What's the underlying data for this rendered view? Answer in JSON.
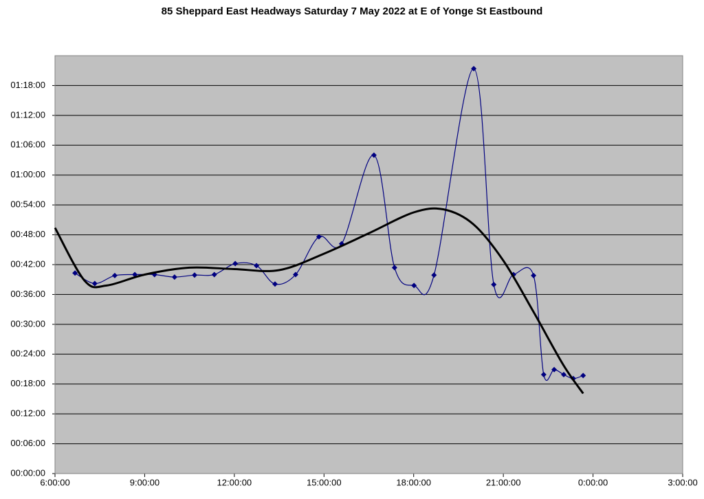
{
  "chart_data": {
    "type": "line",
    "title": "85 Sheppard East Headways Saturday 7 May 2022 at E of Yonge St Eastbound",
    "series": [
      {
        "color": "#000080",
        "marker": "diamond",
        "smooth": true,
        "x": [
          6.67,
          7.33,
          8.0,
          8.67,
          9.33,
          10.0,
          10.67,
          11.33,
          12.03,
          12.74,
          13.36,
          14.05,
          14.83,
          15.59,
          16.67,
          17.36,
          18.01,
          18.68,
          20.01,
          20.68,
          21.34,
          22.01,
          22.35,
          22.7,
          23.02,
          23.34,
          23.67
        ],
        "values": [
          40.3,
          38.2,
          39.8,
          40.0,
          40.0,
          39.5,
          39.9,
          40.0,
          42.2,
          41.8,
          38.1,
          40.0,
          47.6,
          46.2,
          64.0,
          41.4,
          37.8,
          39.9,
          81.4,
          38.0,
          40.0,
          39.8,
          19.9,
          20.9,
          19.9,
          19.1,
          19.7
        ]
      },
      {
        "color": "#000000",
        "marker": "none",
        "smooth": true,
        "x": [
          6.0,
          7.0,
          7.73,
          9.0,
          10.5,
          12.0,
          13.5,
          15.0,
          16.5,
          18.0,
          19.0,
          20.0,
          21.0,
          22.0,
          23.0,
          23.67
        ],
        "values": [
          49.4,
          38.7,
          37.8,
          40.0,
          41.4,
          41.1,
          40.9,
          44.2,
          48.3,
          52.5,
          53.1,
          50.1,
          42.8,
          32.6,
          21.9,
          16.1
        ]
      }
    ],
    "xlim": [
      6,
      27
    ],
    "xticks": [
      {
        "value": 6,
        "label": "6:00:00"
      },
      {
        "value": 9,
        "label": "9:00:00"
      },
      {
        "value": 12,
        "label": "12:00:00"
      },
      {
        "value": 15,
        "label": "15:00:00"
      },
      {
        "value": 18,
        "label": "18:00:00"
      },
      {
        "value": 21,
        "label": "21:00:00"
      },
      {
        "value": 24,
        "label": "0:00:00"
      },
      {
        "value": 27,
        "label": "3:00:00"
      }
    ],
    "ylim": [
      0,
      84
    ],
    "yticks": [
      {
        "value": 0,
        "label": "00:00:00"
      },
      {
        "value": 6,
        "label": "00:06:00"
      },
      {
        "value": 12,
        "label": "00:12:00"
      },
      {
        "value": 18,
        "label": "00:18:00"
      },
      {
        "value": 24,
        "label": "00:24:00"
      },
      {
        "value": 30,
        "label": "00:30:00"
      },
      {
        "value": 36,
        "label": "00:36:00"
      },
      {
        "value": 42,
        "label": "00:42:00"
      },
      {
        "value": 48,
        "label": "00:48:00"
      },
      {
        "value": 54,
        "label": "00:54:00"
      },
      {
        "value": 60,
        "label": "01:00:00"
      },
      {
        "value": 66,
        "label": "01:06:00"
      },
      {
        "value": 72,
        "label": "01:12:00"
      },
      {
        "value": 78,
        "label": "01:18:00"
      }
    ],
    "grid": true,
    "plot_background": "#c0c0c0"
  }
}
